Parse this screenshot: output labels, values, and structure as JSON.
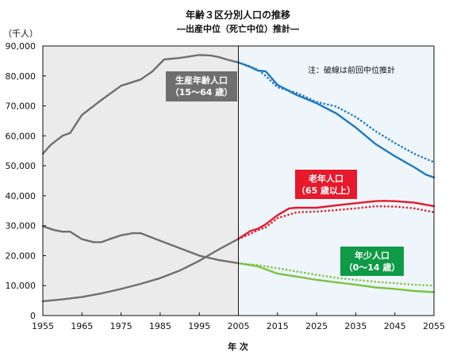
{
  "chart_data": {
    "type": "line",
    "title": "年齢３区分別人口の推移",
    "subtitle": "―出産中位（死亡中位）推計―",
    "ylabel": "（千人）",
    "xlabel": "年 次",
    "xlim": [
      1955,
      2055
    ],
    "ylim": [
      0,
      90000
    ],
    "x_ticks": [
      "1955",
      "1965",
      "1975",
      "1985",
      "1995",
      "2005",
      "2015",
      "2025",
      "2035",
      "2045",
      "2055"
    ],
    "y_ticks": [
      "0",
      "10,000",
      "20,000",
      "30,000",
      "40,000",
      "50,000",
      "60,000",
      "70,000",
      "80,000",
      "90,000"
    ],
    "x_tick_values": [
      1955,
      1965,
      1975,
      1985,
      1995,
      2005,
      2015,
      2025,
      2035,
      2045,
      2055
    ],
    "y_tick_values": [
      0,
      10000,
      20000,
      30000,
      40000,
      50000,
      60000,
      70000,
      80000,
      90000
    ],
    "grid": false,
    "historical_end": 2005,
    "note": "注：破線は前回中位推計",
    "colors": {
      "historical": "#6f6f6f",
      "working_age": "#1f78c1",
      "elderly": "#e8192c",
      "youth": "#7cc242",
      "past_region": "#ebebeb",
      "future_region": "#eef6fb"
    },
    "labels": [
      {
        "lines": [
          "生産年齢人口",
          "（15〜64 歳）"
        ],
        "bg": "#6f6f6f"
      },
      {
        "lines": [
          "老年人口",
          "（65 歳以上）"
        ],
        "bg": "#e8192c"
      },
      {
        "lines": [
          "年少人口",
          "（0〜14 歳）"
        ],
        "bg": "#0f9a48"
      }
    ],
    "series": [
      {
        "name": "生産年齢人口",
        "group": "historical",
        "style": "solid",
        "x": [
          1955,
          1957,
          1960,
          1962,
          1965,
          1970,
          1975,
          1980,
          1983,
          1986,
          1990,
          1993,
          1995,
          1998,
          2000,
          2002,
          2005
        ],
        "y": [
          54000,
          57000,
          60000,
          61000,
          67000,
          72000,
          76700,
          78800,
          81500,
          85500,
          86000,
          86600,
          87000,
          86800,
          86300,
          85500,
          84500
        ]
      },
      {
        "name": "年少人口",
        "group": "historical",
        "style": "solid",
        "x": [
          1955,
          1958,
          1960,
          1962,
          1965,
          1968,
          1970,
          1972,
          1975,
          1978,
          1980,
          1982,
          1985,
          1990,
          1995,
          2000,
          2005
        ],
        "y": [
          29800,
          28500,
          28000,
          28000,
          25500,
          24500,
          24500,
          25500,
          26800,
          27500,
          27500,
          26500,
          25000,
          22500,
          20000,
          18500,
          17500
        ]
      },
      {
        "name": "老年人口",
        "group": "historical",
        "style": "solid",
        "x": [
          1955,
          1960,
          1965,
          1970,
          1975,
          1980,
          1985,
          1990,
          1995,
          2000,
          2005
        ],
        "y": [
          4800,
          5400,
          6200,
          7400,
          8900,
          10600,
          12500,
          15000,
          18300,
          22100,
          25600
        ]
      },
      {
        "name": "生産年齢人口",
        "group": "working_age",
        "style": "solid",
        "x": [
          2005,
          2008,
          2010,
          2012,
          2015,
          2020,
          2025,
          2030,
          2035,
          2040,
          2045,
          2050,
          2053,
          2055
        ],
        "y": [
          84500,
          83000,
          81800,
          81500,
          77000,
          73600,
          70900,
          67500,
          62800,
          57300,
          53200,
          49500,
          47000,
          46100
        ]
      },
      {
        "name": "生産年齢人口",
        "group": "working_age",
        "style": "dotted",
        "x": [
          2005,
          2008,
          2010,
          2012,
          2015,
          2020,
          2025,
          2030,
          2035,
          2040,
          2045,
          2050,
          2055
        ],
        "y": [
          84500,
          83200,
          82000,
          80000,
          76200,
          74300,
          71300,
          69800,
          66300,
          61600,
          57600,
          54000,
          51200
        ]
      },
      {
        "name": "老年人口",
        "group": "elderly",
        "style": "solid",
        "x": [
          2005,
          2008,
          2010,
          2012,
          2015,
          2018,
          2020,
          2025,
          2030,
          2035,
          2040,
          2042,
          2045,
          2050,
          2055
        ],
        "y": [
          25600,
          28200,
          29000,
          30500,
          33500,
          35800,
          36000,
          36000,
          36800,
          37500,
          38200,
          38300,
          38200,
          37700,
          36500
        ]
      },
      {
        "name": "老年人口",
        "group": "elderly",
        "style": "dotted",
        "x": [
          2005,
          2008,
          2010,
          2012,
          2015,
          2020,
          2025,
          2030,
          2035,
          2040,
          2045,
          2050,
          2055
        ],
        "y": [
          25600,
          27200,
          28500,
          29500,
          32500,
          34500,
          34700,
          35200,
          35800,
          36500,
          36400,
          35800,
          34500
        ]
      },
      {
        "name": "年少人口",
        "group": "youth",
        "style": "solid",
        "x": [
          2005,
          2010,
          2015,
          2020,
          2025,
          2030,
          2035,
          2040,
          2045,
          2050,
          2055
        ],
        "y": [
          17500,
          16400,
          14000,
          13000,
          11900,
          11100,
          10300,
          9400,
          8900,
          8200,
          7800
        ]
      },
      {
        "name": "年少人口",
        "group": "youth",
        "style": "dotted",
        "x": [
          2005,
          2010,
          2015,
          2020,
          2025,
          2030,
          2035,
          2040,
          2045,
          2050,
          2055
        ],
        "y": [
          17500,
          16800,
          15800,
          14700,
          13600,
          12600,
          11900,
          11300,
          10800,
          10300,
          10000
        ]
      }
    ]
  }
}
